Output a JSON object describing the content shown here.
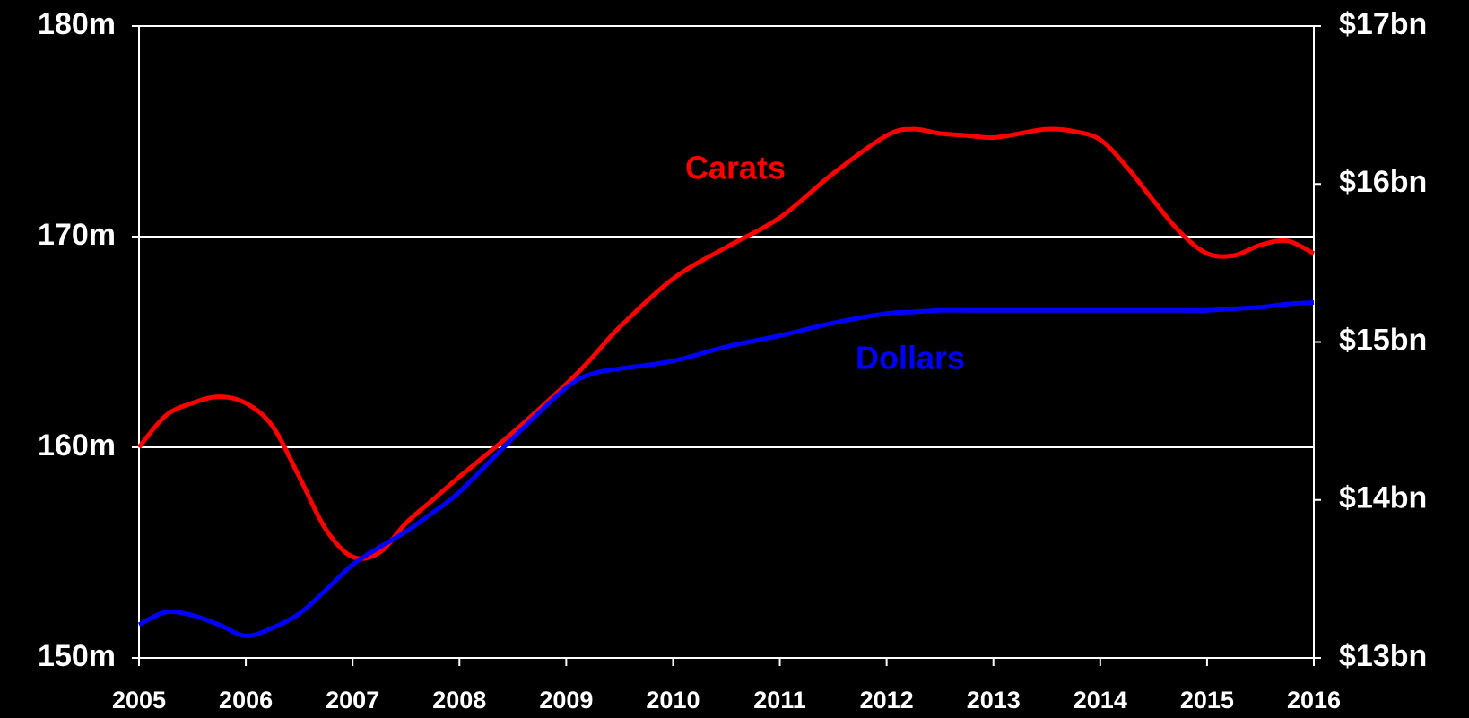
{
  "chart_data": {
    "type": "line",
    "x": [
      2005,
      2005.25,
      2005.5,
      2005.75,
      2006,
      2006.25,
      2006.5,
      2006.75,
      2007,
      2007.25,
      2007.5,
      2007.75,
      2008,
      2008.5,
      2009,
      2009.25,
      2009.5,
      2010,
      2010.5,
      2011,
      2011.5,
      2012,
      2012.25,
      2012.5,
      2012.75,
      2013,
      2013.25,
      2013.5,
      2013.75,
      2014,
      2014.25,
      2014.5,
      2014.75,
      2015,
      2015.25,
      2015.5,
      2015.75,
      2016
    ],
    "series": [
      {
        "name": "Carats",
        "color": "#ff0000",
        "values": [
          160,
          161.5,
          162.1,
          162.4,
          162.1,
          161.0,
          158.6,
          156.1,
          154.8,
          155.0,
          156.4,
          157.5,
          158.6,
          160.7,
          163.0,
          164.3,
          165.7,
          168.0,
          169.5,
          170.9,
          173.0,
          174.8,
          175.1,
          174.9,
          174.8,
          174.7,
          174.9,
          175.1,
          175.0,
          174.6,
          173.3,
          171.7,
          170.2,
          169.2,
          169.1,
          169.6,
          169.8,
          169.2
        ]
      },
      {
        "name": "Dollars",
        "color": "#0000ff",
        "axis": "y2",
        "values": [
          13.21,
          13.29,
          13.27,
          13.21,
          13.14,
          13.19,
          13.28,
          13.43,
          13.59,
          13.7,
          13.8,
          13.92,
          14.05,
          14.39,
          14.71,
          14.8,
          14.83,
          14.88,
          14.97,
          15.04,
          15.12,
          15.18,
          15.19,
          15.2,
          15.2,
          15.2,
          15.2,
          15.2,
          15.2,
          15.2,
          15.2,
          15.2,
          15.2,
          15.2,
          15.21,
          15.22,
          15.24,
          15.25
        ]
      }
    ],
    "xlim": [
      2005,
      2016
    ],
    "xticks": [
      2005,
      2006,
      2007,
      2008,
      2009,
      2010,
      2011,
      2012,
      2013,
      2014,
      2015,
      2016
    ],
    "ylim": [
      150,
      180
    ],
    "yticks": [
      {
        "value": 150,
        "label": "150m"
      },
      {
        "value": 160,
        "label": "160m"
      },
      {
        "value": 170,
        "label": "170m"
      },
      {
        "value": 180,
        "label": "180m"
      }
    ],
    "y2lim": [
      13,
      17
    ],
    "y2ticks": [
      {
        "value": 13,
        "label": "$13bn"
      },
      {
        "value": 14,
        "label": "$14bn"
      },
      {
        "value": 15,
        "label": "$15bn"
      },
      {
        "value": 16,
        "label": "$16bn"
      },
      {
        "value": 17,
        "label": "$17bn"
      }
    ],
    "grid": true
  }
}
